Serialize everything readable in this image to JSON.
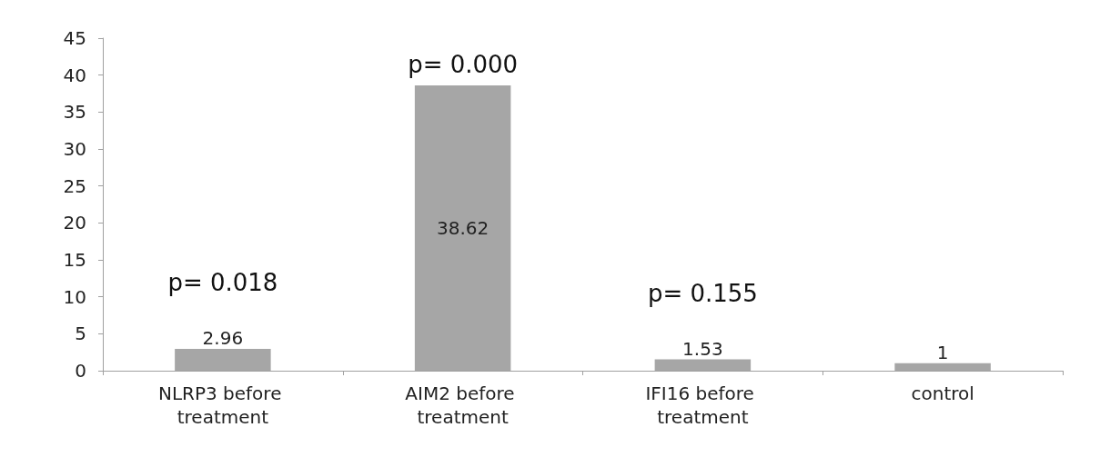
{
  "chart_data": {
    "type": "bar",
    "categories": [
      "NLRP3 before treatment",
      "AIM2 before treatment",
      "IFI16 before treatment",
      "control"
    ],
    "values": [
      2.96,
      38.62,
      1.53,
      1
    ],
    "color": "#a6a6a6",
    "ylim": [
      0,
      45
    ],
    "yticks": [
      0,
      5,
      10,
      15,
      20,
      25,
      30,
      35,
      40,
      45
    ],
    "grid": false,
    "data_labels": true,
    "annotations": [
      "p= 0.018",
      "p= 0.000",
      "p= 0.155"
    ]
  }
}
